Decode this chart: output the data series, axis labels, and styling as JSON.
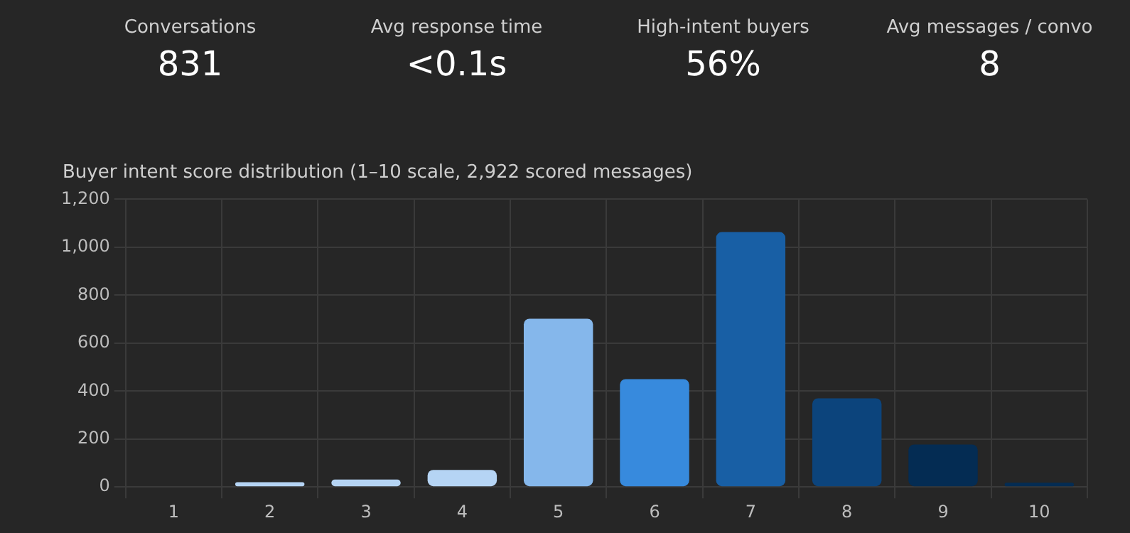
{
  "chart_data": [
    {
      "type": "other",
      "categories": [
        "Conversations",
        "Avg response time",
        "High-intent buyers",
        "Avg messages / convo"
      ],
      "value_labels": [
        "831",
        "<0.1s",
        "56%",
        "8"
      ]
    },
    {
      "type": "bar",
      "title": "Buyer intent score distribution (1–10 scale, 2,922 scored messages)",
      "categories": [
        "1",
        "2",
        "3",
        "4",
        "5",
        "6",
        "7",
        "8",
        "9",
        "10"
      ],
      "values": [
        3,
        20,
        31,
        71,
        702,
        450,
        1063,
        370,
        177,
        18
      ],
      "colors": [
        "#5f6b78",
        "#b5d4f4",
        "#b5d4f4",
        "#b5d4f4",
        "#85b7eb",
        "#378add",
        "#185fa5",
        "#0c447c",
        "#042c53",
        "#042c53"
      ],
      "ylim": [
        0,
        1200
      ],
      "yticks": [
        0,
        200,
        400,
        600,
        800,
        {
          "value": 1000,
          "label": "1,000"
        },
        {
          "value": 1200,
          "label": "1,200"
        }
      ],
      "grid": true
    }
  ]
}
